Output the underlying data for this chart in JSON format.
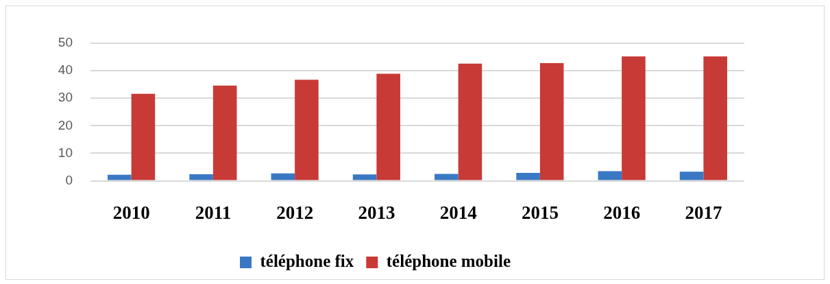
{
  "chart_data": {
    "type": "bar",
    "categories": [
      "2010",
      "2011",
      "2012",
      "2013",
      "2014",
      "2015",
      "2016",
      "2017"
    ],
    "series": [
      {
        "name": "téléphone fix",
        "color": "#3a78c4",
        "values": [
          2.2,
          2.4,
          2.7,
          2.3,
          2.5,
          2.9,
          3.5,
          3.3
        ]
      },
      {
        "name": "téléphone mobile",
        "color": "#c83a36",
        "values": [
          31.6,
          34.6,
          36.7,
          38.9,
          42.6,
          42.8,
          45.2,
          45.2
        ]
      }
    ],
    "ylim": [
      0,
      50
    ],
    "yticks": [
      0,
      10,
      20,
      30,
      40,
      50
    ],
    "grid": "y",
    "legend": "bottom"
  }
}
